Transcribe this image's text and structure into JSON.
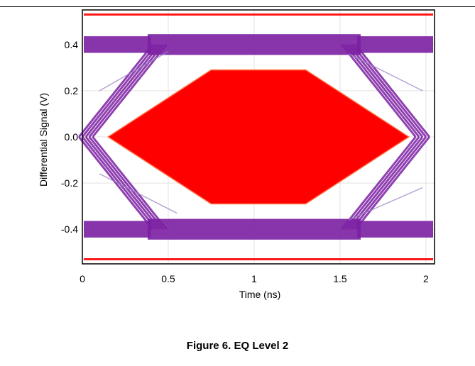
{
  "caption": "Figure 6. EQ Level 2",
  "chart_data": {
    "type": "eye-diagram",
    "title": "",
    "xlabel": "Time (ns)",
    "ylabel": "Differential Signal (V)",
    "xlim": [
      0,
      2.05
    ],
    "ylim": [
      -0.55,
      0.55
    ],
    "x_ticks": [
      0,
      0.5,
      1,
      1.5,
      2
    ],
    "x_tick_labels": [
      "0",
      "0.5",
      "1",
      "1.5",
      "2"
    ],
    "y_ticks": [
      0.4,
      0.2,
      0.0,
      -0.2,
      -0.4
    ],
    "y_tick_labels": [
      "0.4",
      "0.2",
      "0.0",
      "-0.2",
      "-0.4"
    ],
    "grid": true,
    "mask": {
      "name": "eye mask",
      "color": "#ff0000",
      "vertices": [
        [
          0.15,
          0.0
        ],
        [
          0.75,
          0.29
        ],
        [
          1.3,
          0.29
        ],
        [
          1.9,
          0.0
        ],
        [
          1.3,
          -0.29
        ],
        [
          0.75,
          -0.29
        ]
      ]
    },
    "limit_lines": {
      "color": "#ff0000",
      "y": [
        0.53,
        -0.53
      ]
    },
    "eye": {
      "color": "#7b1fa2",
      "high_level": 0.4,
      "low_level": -0.4,
      "crossing_times": [
        0.0,
        2.0
      ],
      "rise_time": 0.45
    }
  }
}
